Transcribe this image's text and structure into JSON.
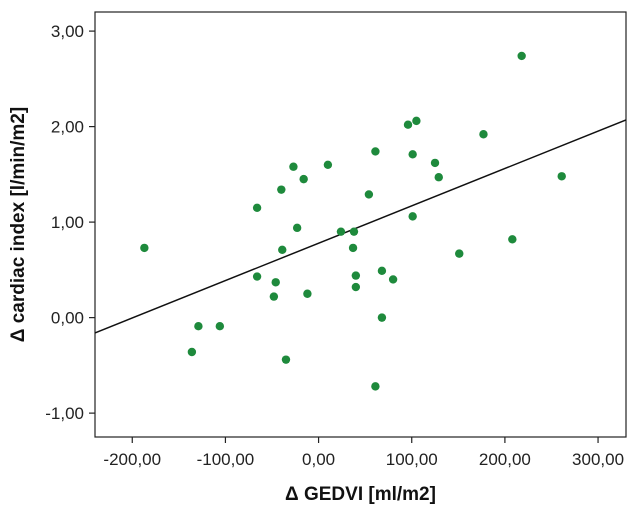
{
  "chart_data": {
    "type": "scatter",
    "title": "",
    "xlabel": "Δ GEDVI [ml/m2]",
    "ylabel": "Δ cardiac index [l/min/m2]",
    "xlim": [
      -240,
      330
    ],
    "ylim": [
      -1.25,
      3.2
    ],
    "x_ticks": [
      -200,
      -100,
      0,
      100,
      200,
      300
    ],
    "x_tick_labels": [
      "-200,00",
      "-100,00",
      "0,00",
      "100,00",
      "200,00",
      "300,00"
    ],
    "y_ticks": [
      -1,
      0,
      1,
      2,
      3
    ],
    "y_tick_labels": [
      "-1,00",
      "0,00",
      "1,00",
      "2,00",
      "3,00"
    ],
    "grid": false,
    "point_color": "#1e8a3c",
    "line_color": "#111111",
    "fit_line": {
      "x": [
        -240,
        330
      ],
      "y": [
        -0.16,
        2.07
      ]
    },
    "points": [
      {
        "x": 218,
        "y": 2.74
      },
      {
        "x": 105,
        "y": 2.06
      },
      {
        "x": 96,
        "y": 2.02
      },
      {
        "x": 177,
        "y": 1.92
      },
      {
        "x": 61,
        "y": 1.74
      },
      {
        "x": 101,
        "y": 1.71
      },
      {
        "x": 125,
        "y": 1.62
      },
      {
        "x": 10,
        "y": 1.6
      },
      {
        "x": -27,
        "y": 1.58
      },
      {
        "x": 129,
        "y": 1.47
      },
      {
        "x": 261,
        "y": 1.48
      },
      {
        "x": -16,
        "y": 1.45
      },
      {
        "x": -40,
        "y": 1.34
      },
      {
        "x": 54,
        "y": 1.29
      },
      {
        "x": -66,
        "y": 1.15
      },
      {
        "x": 101,
        "y": 1.06
      },
      {
        "x": -23,
        "y": 0.94
      },
      {
        "x": 24,
        "y": 0.9
      },
      {
        "x": 38,
        "y": 0.9
      },
      {
        "x": 208,
        "y": 0.82
      },
      {
        "x": -187,
        "y": 0.73
      },
      {
        "x": 37,
        "y": 0.73
      },
      {
        "x": -39,
        "y": 0.71
      },
      {
        "x": 151,
        "y": 0.67
      },
      {
        "x": 68,
        "y": 0.49
      },
      {
        "x": 40,
        "y": 0.44
      },
      {
        "x": -66,
        "y": 0.43
      },
      {
        "x": 80,
        "y": 0.4
      },
      {
        "x": -46,
        "y": 0.37
      },
      {
        "x": 40,
        "y": 0.32
      },
      {
        "x": -12,
        "y": 0.25
      },
      {
        "x": -48,
        "y": 0.22
      },
      {
        "x": 68,
        "y": 0.0
      },
      {
        "x": -129,
        "y": -0.09
      },
      {
        "x": -106,
        "y": -0.09
      },
      {
        "x": -136,
        "y": -0.36
      },
      {
        "x": -35,
        "y": -0.44
      },
      {
        "x": 61,
        "y": -0.72
      }
    ]
  }
}
